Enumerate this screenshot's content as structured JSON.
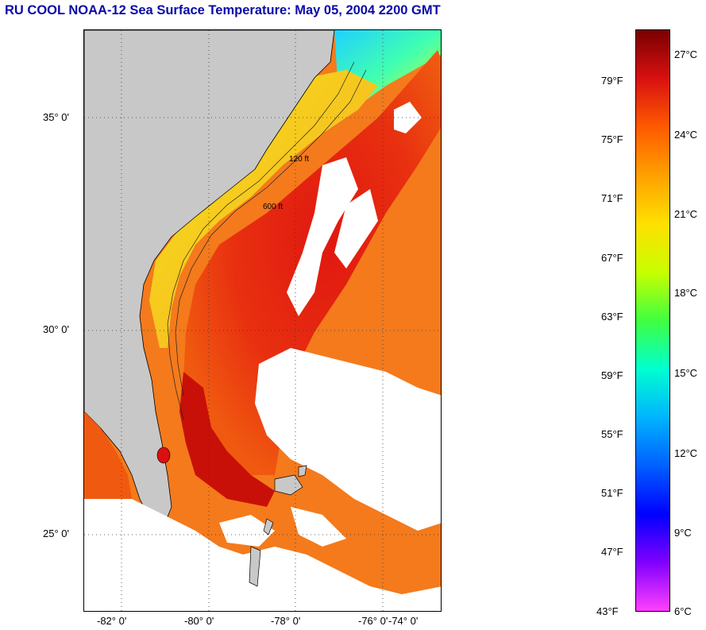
{
  "title": "RU COOL  NOAA-12  Sea Surface Temperature:  May 05, 2004 2200 GMT",
  "map": {
    "lat_labels": [
      "35° 0'",
      "30° 0'",
      "25° 0'"
    ],
    "lon_labels": [
      "-82° 0'",
      "-80° 0'",
      "-78° 0'",
      "-76° 0'",
      "-74° 0'"
    ],
    "contour_labels": [
      "120 ft",
      "600 ft"
    ],
    "colors": {
      "land": "#c8c8c8",
      "cloud": "#ffffff",
      "gulf_stream": "#e42510",
      "shelf": "#f0e020"
    }
  },
  "colorbar": {
    "fahrenheit": [
      "79°F",
      "75°F",
      "71°F",
      "67°F",
      "63°F",
      "59°F",
      "55°F",
      "51°F",
      "47°F",
      "43°F"
    ],
    "celsius": [
      "27°C",
      "24°C",
      "21°C",
      "18°C",
      "15°C",
      "12°C",
      "9°C",
      "6°C"
    ],
    "gradient": [
      "#7a0000",
      "#d81010",
      "#ff5a00",
      "#ffa000",
      "#ffe000",
      "#c8ff00",
      "#40ff40",
      "#00ffd0",
      "#00b4ff",
      "#0060ff",
      "#0000ff",
      "#8000ff",
      "#ff40ff"
    ]
  }
}
